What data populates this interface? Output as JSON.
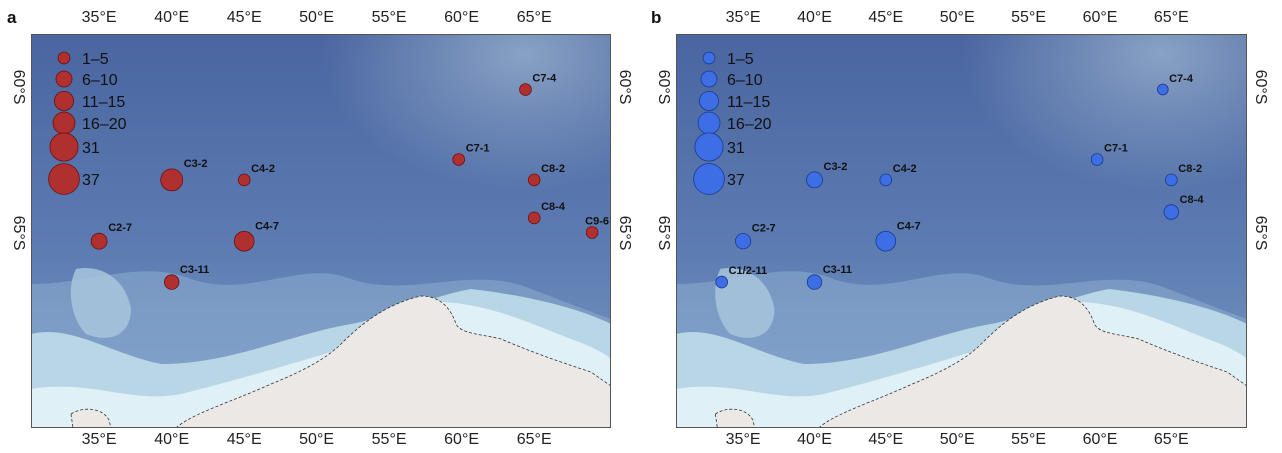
{
  "panels": [
    {
      "letter": "a",
      "marker_color": "#b03030",
      "marker_stroke": "#6a1010",
      "stations": [
        {
          "label": "C7-4",
          "lon": 64.4,
          "lat": -60.1,
          "count": 3
        },
        {
          "label": "C7-1",
          "lon": 59.8,
          "lat": -62.5,
          "count": 3
        },
        {
          "label": "C3-2",
          "lon": 40.0,
          "lat": -63.2,
          "count": 18
        },
        {
          "label": "C4-2",
          "lon": 45.0,
          "lat": -63.2,
          "count": 3
        },
        {
          "label": "C8-2",
          "lon": 65.0,
          "lat": -63.2,
          "count": 3
        },
        {
          "label": "C8-4",
          "lon": 65.0,
          "lat": -64.5,
          "count": 3
        },
        {
          "label": "C9-6",
          "lon": 69.0,
          "lat": -65.0,
          "count": 3
        },
        {
          "label": "C2-7",
          "lon": 35.0,
          "lat": -65.3,
          "count": 8
        },
        {
          "label": "C4-7",
          "lon": 45.0,
          "lat": -65.3,
          "count": 14
        },
        {
          "label": "C3-11",
          "lon": 40.0,
          "lat": -66.7,
          "count": 6
        }
      ]
    },
    {
      "letter": "b",
      "marker_color": "#3d6ee6",
      "marker_stroke": "#1a3a8a",
      "stations": [
        {
          "label": "C7-4",
          "lon": 64.4,
          "lat": -60.1,
          "count": 2
        },
        {
          "label": "C7-1",
          "lon": 59.8,
          "lat": -62.5,
          "count": 3
        },
        {
          "label": "C3-2",
          "lon": 40.0,
          "lat": -63.2,
          "count": 8
        },
        {
          "label": "C4-2",
          "lon": 45.0,
          "lat": -63.2,
          "count": 3
        },
        {
          "label": "C8-2",
          "lon": 65.0,
          "lat": -63.2,
          "count": 3
        },
        {
          "label": "C8-4",
          "lon": 65.0,
          "lat": -64.3,
          "count": 6
        },
        {
          "label": "C2-7",
          "lon": 35.0,
          "lat": -65.3,
          "count": 7
        },
        {
          "label": "C4-7",
          "lon": 45.0,
          "lat": -65.3,
          "count": 14
        },
        {
          "label": "C1/2-11",
          "lon": 33.5,
          "lat": -66.7,
          "count": 3
        },
        {
          "label": "C3-11",
          "lon": 40.0,
          "lat": -66.7,
          "count": 6
        }
      ]
    }
  ],
  "legend": {
    "entries": [
      {
        "label": "1–5",
        "count": 3
      },
      {
        "label": "6–10",
        "count": 8
      },
      {
        "label": "11–15",
        "count": 13
      },
      {
        "label": "16–20",
        "count": 18
      },
      {
        "label": "31",
        "count": 31
      },
      {
        "label": "37",
        "count": 37
      }
    ]
  },
  "axes": {
    "lon_ticks": [
      {
        "value": 35,
        "label": "35°E"
      },
      {
        "value": 40,
        "label": "40°E"
      },
      {
        "value": 45,
        "label": "45°E"
      },
      {
        "value": 50,
        "label": "50°E"
      },
      {
        "value": 55,
        "label": "55°E"
      },
      {
        "value": 60,
        "label": "60°E"
      },
      {
        "value": 65,
        "label": "65°E"
      }
    ],
    "lat_ticks": [
      {
        "value": -60,
        "label": "60°S"
      },
      {
        "value": -65,
        "label": "65°S"
      }
    ],
    "lon_range": [
      30.3,
      70.3
    ],
    "lat_range": [
      -58.2,
      -71.7
    ]
  },
  "colors": {
    "ocean_deep": "#4a65a0",
    "ocean_mid": "#7a9cc5",
    "ocean_shelf": "#b9d6e6",
    "ice_shelf": "#dff0f6",
    "land": "#ece8e6"
  }
}
